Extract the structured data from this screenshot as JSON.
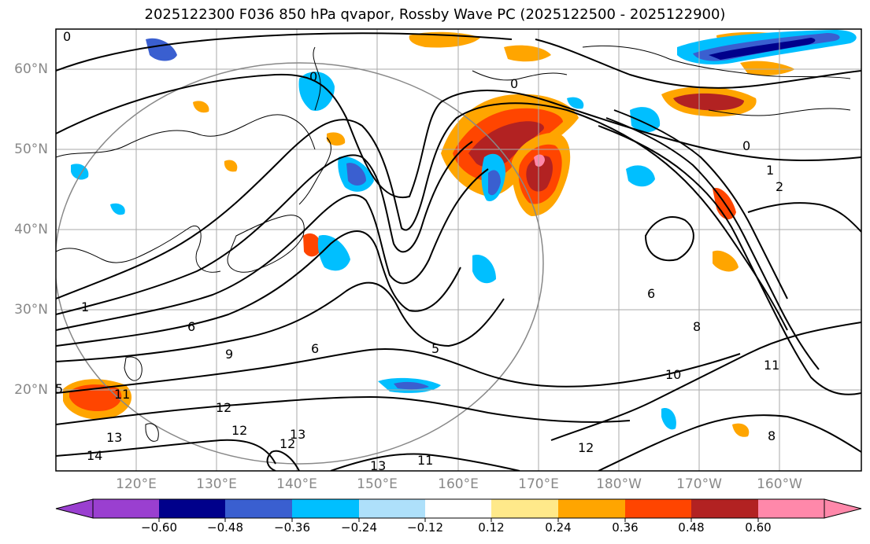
{
  "title": "2025122300 F036 850 hPa qvapor, Rossby Wave PC (2025122500 - 2025122900)",
  "lat_labels": [
    "60°N",
    "50°N",
    "40°N",
    "30°N",
    "20°N"
  ],
  "lon_labels": [
    "120°E",
    "130°E",
    "140°E",
    "150°E",
    "160°E",
    "170°E",
    "180°W",
    "170°W",
    "160°W"
  ],
  "contour_labels": [
    "0",
    "0",
    "0",
    "0",
    "1",
    "2",
    "1",
    "6",
    "6",
    "9",
    "5",
    "6",
    "8",
    "10",
    "11",
    "11",
    "12",
    "12",
    "13",
    "12",
    "13",
    "14",
    "11",
    "12",
    "8",
    "5",
    "13"
  ],
  "colorbar": {
    "tick_labels": [
      "−0.60",
      "−0.48",
      "−0.36",
      "−0.24",
      "−0.12",
      "0.12",
      "0.24",
      "0.36",
      "0.48",
      "0.60"
    ],
    "colors": [
      "#9a3fd0",
      "#00008b",
      "#3a5fd0",
      "#00bfff",
      "#aee0fa",
      "#ffffff",
      "#ffe98a",
      "#ffa500",
      "#ff4500",
      "#b22222",
      "#ff88aa"
    ]
  },
  "colors": {
    "grid": "#aaaaaa",
    "contour": "#000000",
    "coast": "#000000",
    "circle": "#888888"
  }
}
